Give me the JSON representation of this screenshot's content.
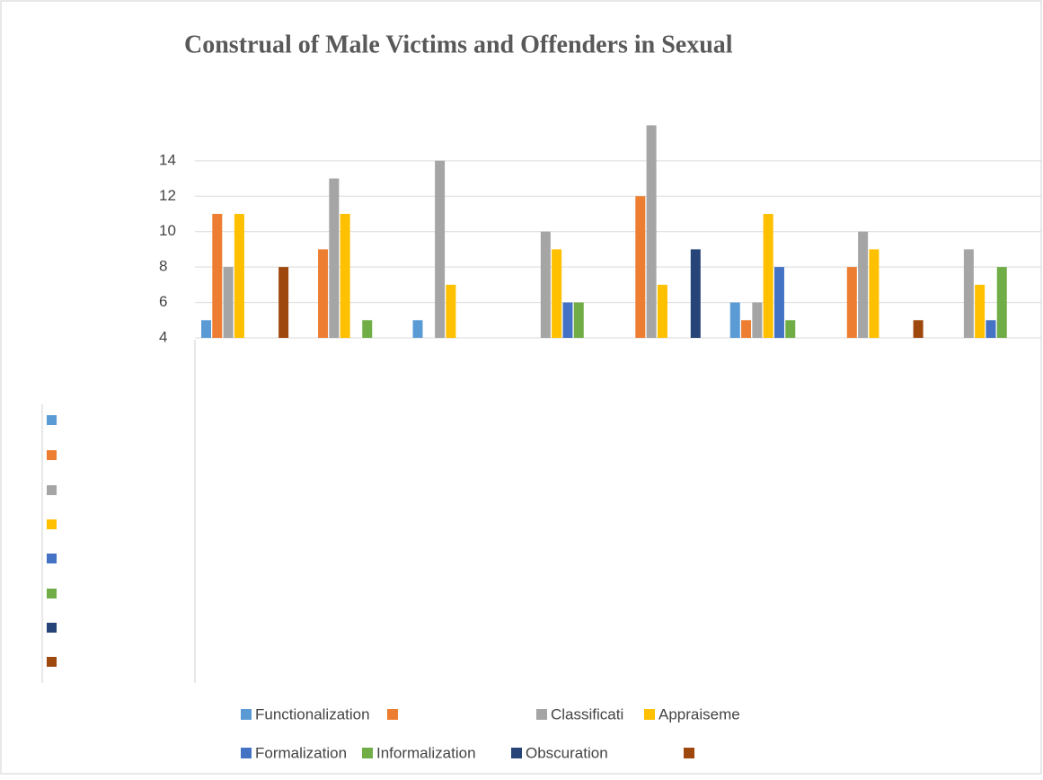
{
  "chart_data": {
    "type": "bar",
    "title": "Construal of Male Victims and Offenders in Sexual",
    "categories": [
      null,
      null,
      null,
      null,
      null,
      null,
      null,
      null
    ],
    "series": [
      {
        "name": "Functionalization",
        "color": "#5b9bd5",
        "values": [
          5,
          null,
          5,
          null,
          null,
          6,
          null,
          null
        ]
      },
      {
        "name": null,
        "color": "#ed7d31",
        "values": [
          11,
          9,
          null,
          null,
          12,
          5,
          8,
          null
        ]
      },
      {
        "name": "Classificati",
        "color": "#a5a5a5",
        "values": [
          8,
          13,
          14,
          10,
          16,
          6,
          10,
          9
        ]
      },
      {
        "name": "Appraiseme",
        "color": "#ffc000",
        "values": [
          11,
          11,
          7,
          9,
          7,
          11,
          9,
          7
        ]
      },
      {
        "name": "Formalization",
        "color": "#4472c4",
        "values": [
          null,
          null,
          null,
          6,
          null,
          8,
          null,
          5
        ]
      },
      {
        "name": "Informalization",
        "color": "#70ad47",
        "values": [
          null,
          5,
          null,
          6,
          null,
          5,
          null,
          8
        ]
      },
      {
        "name": "Obscuration",
        "color": "#264478",
        "values": [
          null,
          null,
          null,
          null,
          9,
          null,
          null,
          null
        ]
      },
      {
        "name": null,
        "color": "#9e480e",
        "values": [
          8,
          null,
          null,
          null,
          null,
          null,
          5,
          null
        ]
      }
    ],
    "ylim": [
      4,
      18
    ],
    "yticks": [
      4,
      6,
      8,
      10,
      12,
      14
    ],
    "grid": true
  }
}
